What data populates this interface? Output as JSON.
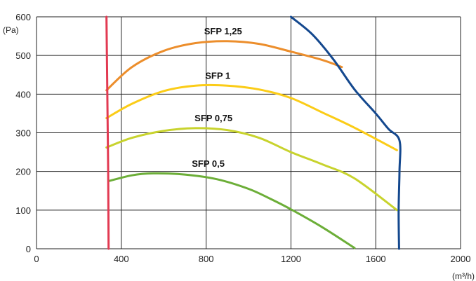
{
  "chart_data": {
    "type": "line",
    "title": "",
    "xlabel": "",
    "ylabel": "",
    "x_unit": "(m³/h)",
    "y_unit": "(Pa)",
    "xlim": [
      0,
      2000
    ],
    "ylim": [
      0,
      600
    ],
    "x_ticks": [
      0,
      400,
      800,
      1200,
      1600,
      2000
    ],
    "y_ticks": [
      0,
      100,
      200,
      300,
      400,
      500,
      600
    ],
    "grid": "vertical-and-horizontal",
    "colors": {
      "grid": "#222222",
      "sfp_1_25": "#ec8e2c",
      "sfp_1": "#fbcc17",
      "sfp_0_75": "#c8d32d",
      "sfp_0_5": "#6cae38",
      "min_limit": "#e23a52",
      "max_limit": "#14488e"
    },
    "series": [
      {
        "name": "SFP 1,25",
        "color_key": "sfp_1_25",
        "x": [
          330,
          450,
          600,
          750,
          900,
          1050,
          1200,
          1350,
          1440
        ],
        "y": [
          410,
          470,
          512,
          532,
          537,
          530,
          510,
          488,
          470
        ]
      },
      {
        "name": "SFP 1",
        "color_key": "sfp_1",
        "x": [
          330,
          450,
          600,
          750,
          900,
          1050,
          1200,
          1350,
          1500,
          1700
        ],
        "y": [
          338,
          375,
          408,
          422,
          422,
          412,
          390,
          352,
          313,
          255
        ]
      },
      {
        "name": "SFP 0,75",
        "color_key": "sfp_0_75",
        "x": [
          330,
          450,
          600,
          750,
          900,
          1050,
          1200,
          1350,
          1500,
          1700
        ],
        "y": [
          262,
          287,
          305,
          312,
          307,
          287,
          250,
          218,
          182,
          100
        ]
      },
      {
        "name": "SFP 0,5",
        "color_key": "sfp_0_5",
        "x": [
          340,
          450,
          550,
          700,
          850,
          1000,
          1100,
          1200,
          1350,
          1500
        ],
        "y": [
          175,
          190,
          195,
          192,
          180,
          155,
          130,
          102,
          55,
          2
        ]
      },
      {
        "name": "",
        "color_key": "min_limit",
        "x": [
          330,
          332,
          334,
          336,
          338,
          340
        ],
        "y": [
          600,
          500,
          400,
          300,
          200,
          0
        ]
      },
      {
        "name": "",
        "color_key": "max_limit",
        "x": [
          1200,
          1300,
          1400,
          1500,
          1600,
          1660,
          1712,
          1712,
          1708,
          1710
        ],
        "y": [
          600,
          555,
          490,
          412,
          350,
          310,
          280,
          200,
          100,
          0
        ]
      }
    ],
    "labels": [
      {
        "text": "SFP 1,25",
        "x": 880,
        "y": 555
      },
      {
        "text": "SFP 1",
        "x": 855,
        "y": 440
      },
      {
        "text": "SFP 0,75",
        "x": 835,
        "y": 330
      },
      {
        "text": "SFP 0,5",
        "x": 810,
        "y": 212
      }
    ]
  }
}
